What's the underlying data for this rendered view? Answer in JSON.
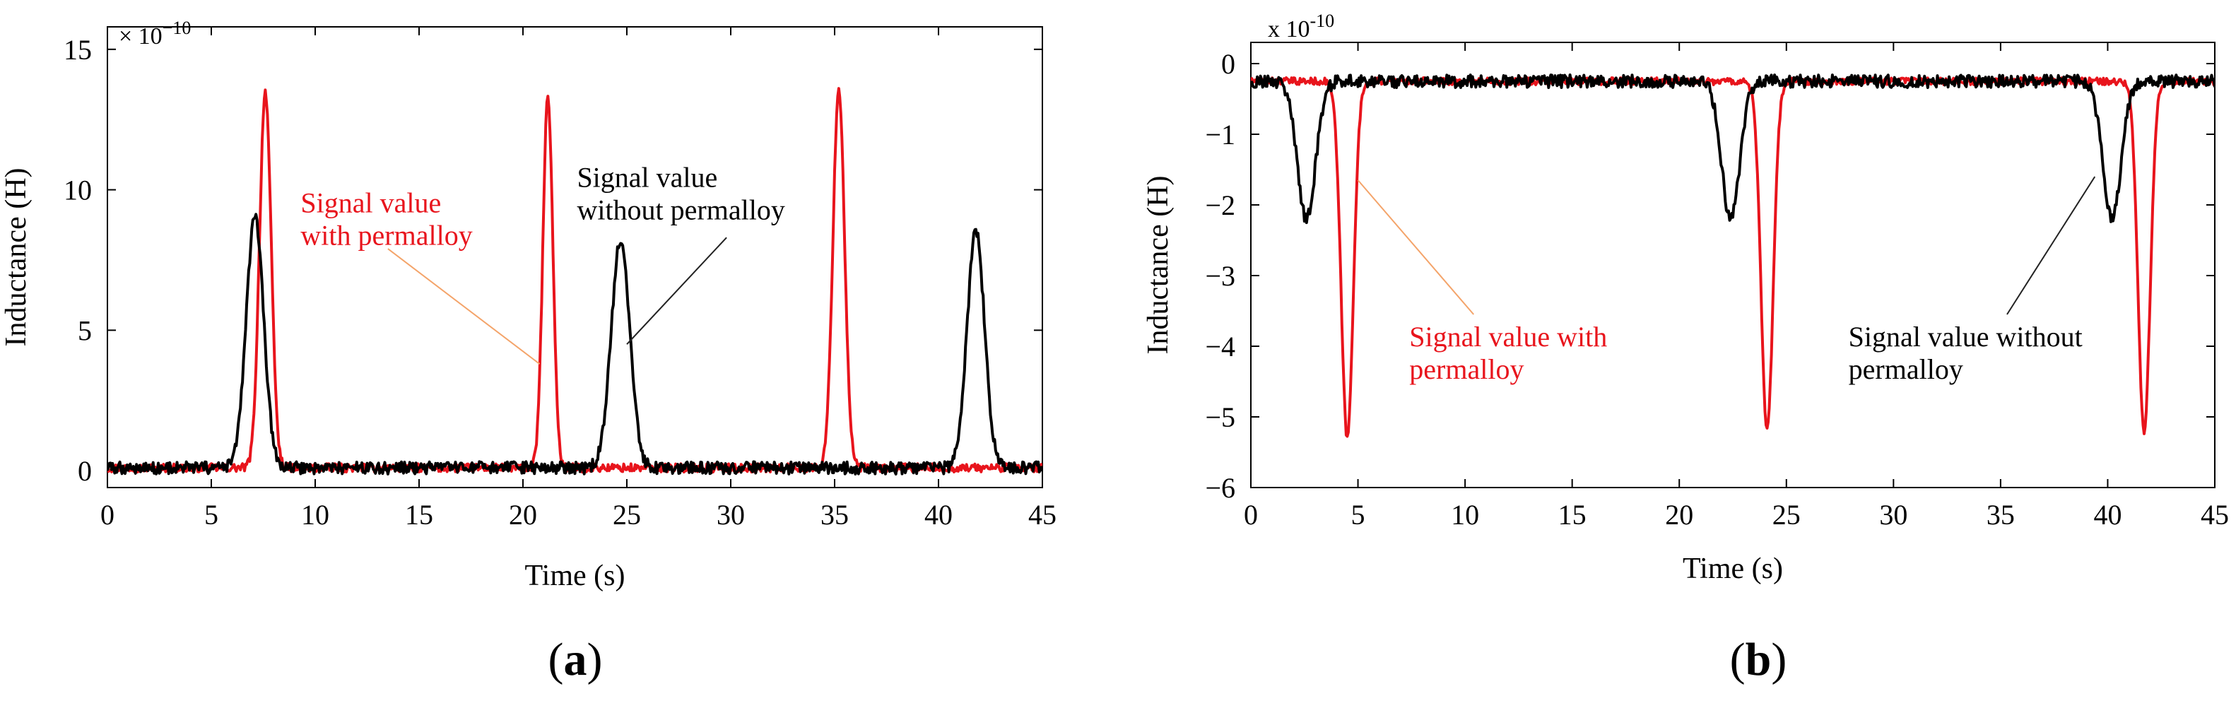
{
  "chart_data": [
    {
      "panel_label": "(a)",
      "panel_label_parts": {
        "open": "(",
        "letter": "a",
        "close": ")"
      },
      "type": "line",
      "xlabel": "Time (s)",
      "ylabel": "Inductance (H)",
      "exponent": {
        "base": "× 10",
        "power": "−10"
      },
      "xlim": [
        0,
        45
      ],
      "ylim": [
        -0.6,
        15.8
      ],
      "xticks": [
        0,
        5,
        10,
        15,
        20,
        25,
        30,
        35,
        40,
        45
      ],
      "yticks": [
        0,
        5,
        10,
        15
      ],
      "series": [
        {
          "name": "Signal value with permalloy",
          "color": "#e8141c",
          "baseline": 0.1,
          "noise": 0.15,
          "peaks": [
            {
              "t": 7.6,
              "value": 13.5,
              "width": 0.28
            },
            {
              "t": 21.2,
              "value": 13.3,
              "width": 0.24
            },
            {
              "t": 35.2,
              "value": 13.6,
              "width": 0.28
            }
          ]
        },
        {
          "name": "Signal value without permalloy",
          "color": "#000000",
          "baseline": 0.1,
          "noise": 0.22,
          "peaks": [
            {
              "t": 7.1,
              "value": 9.0,
              "width": 0.42
            },
            {
              "t": 24.7,
              "value": 8.2,
              "width": 0.45
            },
            {
              "t": 41.8,
              "value": 8.5,
              "width": 0.42
            }
          ]
        }
      ],
      "annotations": [
        {
          "lines": [
            "Signal value",
            "with permalloy"
          ],
          "color": "#e8141c",
          "text_at": [
            9.3,
            9.2
          ],
          "arrow_from": [
            13.5,
            7.9
          ],
          "arrow_to": [
            20.8,
            3.8
          ]
        },
        {
          "lines": [
            "Signal value",
            "without permalloy"
          ],
          "color": "#000000",
          "text_at": [
            22.6,
            10.1
          ],
          "arrow_from": [
            29.8,
            8.3
          ],
          "arrow_to": [
            25.0,
            4.5
          ]
        }
      ]
    },
    {
      "panel_label": "(b)",
      "panel_label_parts": {
        "open": "(",
        "letter": "b",
        "close": ")"
      },
      "type": "line",
      "xlabel": "Time (s)",
      "ylabel": "Inductance (H)",
      "exponent": {
        "base": "x 10",
        "power": "-10"
      },
      "xlim": [
        0,
        45
      ],
      "ylim": [
        -6.0,
        0.3
      ],
      "xticks": [
        0,
        5,
        10,
        15,
        20,
        25,
        30,
        35,
        40,
        45
      ],
      "yticks": [
        0,
        -1,
        -2,
        -3,
        -4,
        -5,
        -6
      ],
      "series": [
        {
          "name": "Signal value with permalloy",
          "color": "#e8141c",
          "baseline": -0.25,
          "noise": 0.05,
          "peaks": [
            {
              "t": 4.5,
              "value": -5.3,
              "width": 0.28
            },
            {
              "t": 24.1,
              "value": -5.2,
              "width": 0.28
            },
            {
              "t": 41.7,
              "value": -5.2,
              "width": 0.28
            }
          ]
        },
        {
          "name": "Signal value without permalloy",
          "color": "#000000",
          "baseline": -0.25,
          "noise": 0.09,
          "peaks": [
            {
              "t": 2.6,
              "value": -2.2,
              "width": 0.42
            },
            {
              "t": 22.4,
              "value": -2.2,
              "width": 0.42
            },
            {
              "t": 40.2,
              "value": -2.2,
              "width": 0.42
            }
          ]
        }
      ],
      "annotations": [
        {
          "lines": [
            "Signal value with",
            "permalloy"
          ],
          "color": "#e8141c",
          "text_at": [
            7.4,
            -4.0
          ],
          "arrow_from": [
            10.4,
            -3.55
          ],
          "arrow_to": [
            5.0,
            -1.65
          ]
        },
        {
          "lines": [
            "Signal value without",
            "permalloy"
          ],
          "color": "#000000",
          "text_at": [
            27.9,
            -4.0
          ],
          "arrow_from": [
            35.3,
            -3.55
          ],
          "arrow_to": [
            39.4,
            -1.6
          ]
        }
      ]
    }
  ]
}
